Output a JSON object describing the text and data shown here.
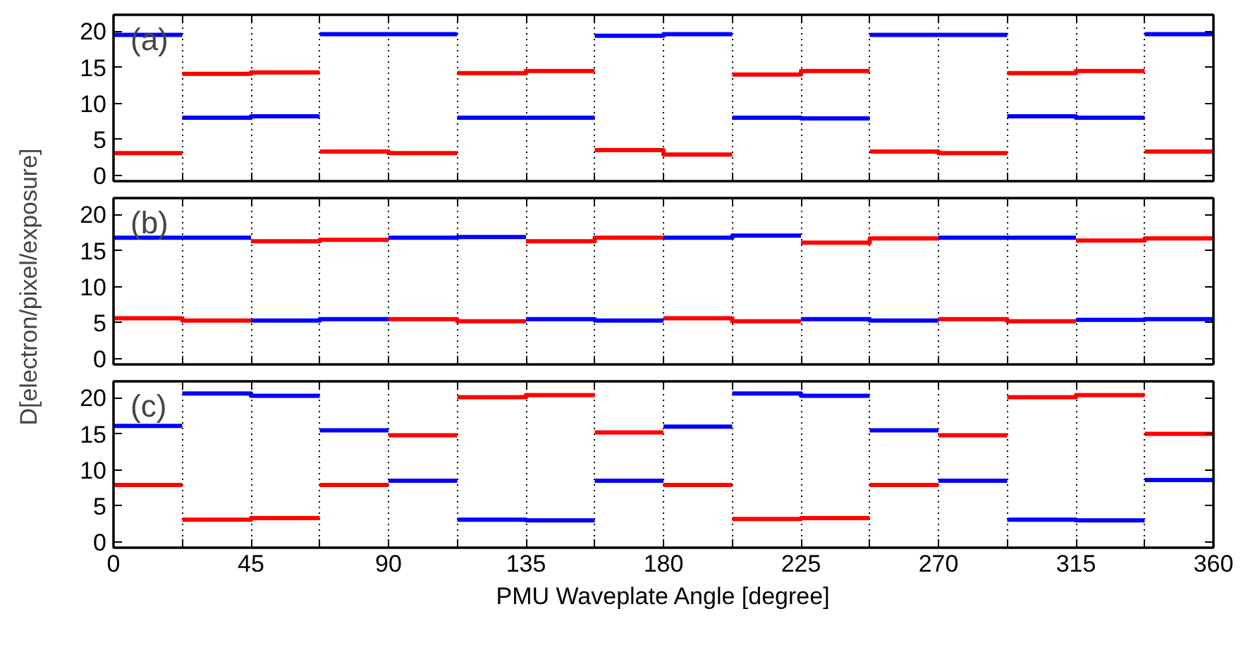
{
  "chart_data": [
    {
      "type": "line",
      "annotations": [
        "(a)"
      ],
      "xlim": [
        0,
        360
      ],
      "xticks": [
        0,
        {
          "value": 22.5,
          "label": null
        },
        45,
        {
          "value": 67.5,
          "label": null
        },
        90,
        {
          "value": 112.5,
          "label": null
        },
        135,
        {
          "value": 157.5,
          "label": null
        },
        180,
        {
          "value": 202.5,
          "label": null
        },
        225,
        {
          "value": 247.5,
          "label": null
        },
        270,
        {
          "value": 292.5,
          "label": null
        },
        315,
        {
          "value": 337.5,
          "label": null
        },
        360
      ],
      "ylim": [
        -0.8,
        22.3
      ],
      "yticks": [
        0,
        5,
        10,
        15,
        20
      ],
      "grid": "x",
      "tick_labels": "y",
      "series": [
        {
          "color": "#ff0000",
          "x": [
            0,
            22.5
          ],
          "values": [
            3.1,
            3.1
          ]
        },
        {
          "color": "#ff0000",
          "x": [
            22.5,
            45,
            45,
            67.5
          ],
          "values": [
            14.1,
            14.1,
            14.3,
            14.3
          ]
        },
        {
          "color": "#ff0000",
          "x": [
            67.5,
            90,
            90,
            112.5
          ],
          "values": [
            3.3,
            3.3,
            3.1,
            3.1
          ]
        },
        {
          "color": "#ff0000",
          "x": [
            112.5,
            135,
            135,
            157.5
          ],
          "values": [
            14.2,
            14.2,
            14.5,
            14.5
          ]
        },
        {
          "color": "#ff0000",
          "x": [
            157.5,
            180,
            180,
            202.5
          ],
          "values": [
            3.5,
            3.5,
            2.9,
            2.9
          ]
        },
        {
          "color": "#ff0000",
          "x": [
            202.5,
            225,
            225,
            247.5
          ],
          "values": [
            14.0,
            14.0,
            14.5,
            14.5
          ]
        },
        {
          "color": "#ff0000",
          "x": [
            247.5,
            270,
            270,
            292.5
          ],
          "values": [
            3.3,
            3.3,
            3.1,
            3.1
          ]
        },
        {
          "color": "#ff0000",
          "x": [
            292.5,
            315,
            315,
            337.5
          ],
          "values": [
            14.2,
            14.2,
            14.5,
            14.5
          ]
        },
        {
          "color": "#ff0000",
          "x": [
            337.5,
            360
          ],
          "values": [
            3.3,
            3.3
          ]
        },
        {
          "color": "#0000ff",
          "x": [
            0,
            22.5
          ],
          "values": [
            19.5,
            19.5
          ]
        },
        {
          "color": "#0000ff",
          "x": [
            22.5,
            45,
            45,
            67.5
          ],
          "values": [
            8.0,
            8.0,
            8.2,
            8.2
          ]
        },
        {
          "color": "#0000ff",
          "x": [
            67.5,
            90,
            90,
            112.5
          ],
          "values": [
            19.6,
            19.6,
            19.6,
            19.6
          ]
        },
        {
          "color": "#0000ff",
          "x": [
            112.5,
            135,
            135,
            157.5
          ],
          "values": [
            8.0,
            8.0,
            8.0,
            8.0
          ]
        },
        {
          "color": "#0000ff",
          "x": [
            157.5,
            180,
            180,
            202.5
          ],
          "values": [
            19.4,
            19.4,
            19.6,
            19.6
          ]
        },
        {
          "color": "#0000ff",
          "x": [
            202.5,
            225,
            225,
            247.5
          ],
          "values": [
            8.0,
            8.0,
            7.9,
            7.9
          ]
        },
        {
          "color": "#0000ff",
          "x": [
            247.5,
            270,
            270,
            292.5
          ],
          "values": [
            19.5,
            19.5,
            19.5,
            19.5
          ]
        },
        {
          "color": "#0000ff",
          "x": [
            292.5,
            315,
            315,
            337.5
          ],
          "values": [
            8.2,
            8.2,
            8.0,
            8.0
          ]
        },
        {
          "color": "#0000ff",
          "x": [
            337.5,
            360
          ],
          "values": [
            19.6,
            19.6
          ]
        }
      ]
    },
    {
      "type": "line",
      "annotations": [
        "(b)"
      ],
      "ylabel": "D[electron/pixel/exposure]",
      "xlim": [
        0,
        360
      ],
      "xticks": [
        0,
        {
          "value": 22.5,
          "label": null
        },
        45,
        {
          "value": 67.5,
          "label": null
        },
        90,
        {
          "value": 112.5,
          "label": null
        },
        135,
        {
          "value": 157.5,
          "label": null
        },
        180,
        {
          "value": 202.5,
          "label": null
        },
        225,
        {
          "value": 247.5,
          "label": null
        },
        270,
        {
          "value": 292.5,
          "label": null
        },
        315,
        {
          "value": 337.5,
          "label": null
        },
        360
      ],
      "ylim": [
        -0.8,
        22.3
      ],
      "yticks": [
        0,
        5,
        10,
        15,
        20
      ],
      "grid": "x",
      "tick_labels": "y",
      "series": [
        {
          "color": "#ff0000",
          "x": [
            0,
            22.5,
            22.5,
            45
          ],
          "values": [
            5.6,
            5.6,
            5.3,
            5.3
          ]
        },
        {
          "color": "#ff0000",
          "x": [
            45,
            67.5,
            67.5,
            90
          ],
          "values": [
            16.3,
            16.3,
            16.5,
            16.5
          ]
        },
        {
          "color": "#ff0000",
          "x": [
            90,
            112.5,
            112.5,
            135
          ],
          "values": [
            5.5,
            5.5,
            5.2,
            5.2
          ]
        },
        {
          "color": "#ff0000",
          "x": [
            135,
            157.5,
            157.5,
            180
          ],
          "values": [
            16.3,
            16.3,
            16.8,
            16.8
          ]
        },
        {
          "color": "#ff0000",
          "x": [
            180,
            202.5,
            202.5,
            225
          ],
          "values": [
            5.6,
            5.6,
            5.2,
            5.2
          ]
        },
        {
          "color": "#ff0000",
          "x": [
            225,
            247.5,
            247.5,
            270
          ],
          "values": [
            16.1,
            16.1,
            16.7,
            16.7
          ]
        },
        {
          "color": "#ff0000",
          "x": [
            270,
            292.5,
            292.5,
            315
          ],
          "values": [
            5.5,
            5.5,
            5.2,
            5.2
          ]
        },
        {
          "color": "#ff0000",
          "x": [
            315,
            337.5,
            337.5,
            360
          ],
          "values": [
            16.4,
            16.4,
            16.7,
            16.7
          ]
        },
        {
          "color": "#0000ff",
          "x": [
            0,
            22.5,
            22.5,
            45
          ],
          "values": [
            16.8,
            16.8,
            16.8,
            16.8
          ]
        },
        {
          "color": "#0000ff",
          "x": [
            45,
            67.5,
            67.5,
            90
          ],
          "values": [
            5.3,
            5.3,
            5.5,
            5.5
          ]
        },
        {
          "color": "#0000ff",
          "x": [
            90,
            112.5,
            112.5,
            135
          ],
          "values": [
            16.8,
            16.8,
            16.9,
            16.9
          ]
        },
        {
          "color": "#0000ff",
          "x": [
            135,
            157.5,
            157.5,
            180
          ],
          "values": [
            5.5,
            5.5,
            5.3,
            5.3
          ]
        },
        {
          "color": "#0000ff",
          "x": [
            180,
            202.5,
            202.5,
            225
          ],
          "values": [
            16.8,
            16.8,
            17.1,
            17.1
          ]
        },
        {
          "color": "#0000ff",
          "x": [
            225,
            247.5,
            247.5,
            270
          ],
          "values": [
            5.5,
            5.5,
            5.3,
            5.3
          ]
        },
        {
          "color": "#0000ff",
          "x": [
            270,
            292.5,
            292.5,
            315
          ],
          "values": [
            16.8,
            16.8,
            16.8,
            16.8
          ]
        },
        {
          "color": "#0000ff",
          "x": [
            315,
            337.5,
            337.5,
            360
          ],
          "values": [
            5.4,
            5.4,
            5.5,
            5.5
          ]
        }
      ]
    },
    {
      "type": "line",
      "annotations": [
        "(c)"
      ],
      "xlabel": "PMU Waveplate Angle [degree]",
      "xlim": [
        0,
        360
      ],
      "xticks": [
        0,
        {
          "value": 22.5,
          "label": null
        },
        45,
        {
          "value": 67.5,
          "label": null
        },
        90,
        {
          "value": 112.5,
          "label": null
        },
        135,
        {
          "value": 157.5,
          "label": null
        },
        180,
        {
          "value": 202.5,
          "label": null
        },
        225,
        {
          "value": 247.5,
          "label": null
        },
        270,
        {
          "value": 292.5,
          "label": null
        },
        315,
        {
          "value": 337.5,
          "label": null
        },
        360
      ],
      "ylim": [
        -0.8,
        22.3
      ],
      "yticks": [
        0,
        5,
        10,
        15,
        20
      ],
      "grid": "x",
      "series": [
        {
          "color": "#ff0000",
          "x": [
            0,
            22.5
          ],
          "values": [
            7.9,
            7.9
          ]
        },
        {
          "color": "#ff0000",
          "x": [
            22.5,
            45,
            45,
            67.5
          ],
          "values": [
            3.1,
            3.1,
            3.3,
            3.3
          ]
        },
        {
          "color": "#ff0000",
          "x": [
            67.5,
            90
          ],
          "values": [
            7.9,
            7.9
          ]
        },
        {
          "color": "#ff0000",
          "x": [
            90,
            112.5
          ],
          "values": [
            14.8,
            14.8
          ]
        },
        {
          "color": "#ff0000",
          "x": [
            112.5,
            135,
            135,
            157.5
          ],
          "values": [
            20.1,
            20.1,
            20.4,
            20.4
          ]
        },
        {
          "color": "#ff0000",
          "x": [
            157.5,
            180
          ],
          "values": [
            15.2,
            15.2
          ]
        },
        {
          "color": "#ff0000",
          "x": [
            180,
            202.5
          ],
          "values": [
            7.9,
            7.9
          ]
        },
        {
          "color": "#ff0000",
          "x": [
            202.5,
            225,
            225,
            247.5
          ],
          "values": [
            3.2,
            3.2,
            3.3,
            3.3
          ]
        },
        {
          "color": "#ff0000",
          "x": [
            247.5,
            270
          ],
          "values": [
            7.9,
            7.9
          ]
        },
        {
          "color": "#ff0000",
          "x": [
            270,
            292.5
          ],
          "values": [
            14.8,
            14.8
          ]
        },
        {
          "color": "#ff0000",
          "x": [
            292.5,
            315,
            315,
            337.5
          ],
          "values": [
            20.1,
            20.1,
            20.4,
            20.4
          ]
        },
        {
          "color": "#ff0000",
          "x": [
            337.5,
            360
          ],
          "values": [
            15.0,
            15.0
          ]
        },
        {
          "color": "#0000ff",
          "x": [
            0,
            22.5
          ],
          "values": [
            16.1,
            16.1
          ]
        },
        {
          "color": "#0000ff",
          "x": [
            22.5,
            45,
            45,
            67.5
          ],
          "values": [
            20.6,
            20.6,
            20.3,
            20.3
          ]
        },
        {
          "color": "#0000ff",
          "x": [
            67.5,
            90
          ],
          "values": [
            15.5,
            15.5
          ]
        },
        {
          "color": "#0000ff",
          "x": [
            90,
            112.5
          ],
          "values": [
            8.5,
            8.5
          ]
        },
        {
          "color": "#0000ff",
          "x": [
            112.5,
            135,
            135,
            157.5
          ],
          "values": [
            3.1,
            3.1,
            3.0,
            3.0
          ]
        },
        {
          "color": "#0000ff",
          "x": [
            157.5,
            180
          ],
          "values": [
            8.5,
            8.5
          ]
        },
        {
          "color": "#0000ff",
          "x": [
            180,
            202.5
          ],
          "values": [
            16.0,
            16.0
          ]
        },
        {
          "color": "#0000ff",
          "x": [
            202.5,
            225,
            225,
            247.5
          ],
          "values": [
            20.6,
            20.6,
            20.3,
            20.3
          ]
        },
        {
          "color": "#0000ff",
          "x": [
            247.5,
            270
          ],
          "values": [
            15.5,
            15.5
          ]
        },
        {
          "color": "#0000ff",
          "x": [
            270,
            292.5
          ],
          "values": [
            8.5,
            8.5
          ]
        },
        {
          "color": "#0000ff",
          "x": [
            292.5,
            315,
            315,
            337.5
          ],
          "values": [
            3.1,
            3.1,
            3.0,
            3.0
          ]
        },
        {
          "color": "#0000ff",
          "x": [
            337.5,
            360
          ],
          "values": [
            8.6,
            8.6
          ]
        }
      ]
    }
  ]
}
